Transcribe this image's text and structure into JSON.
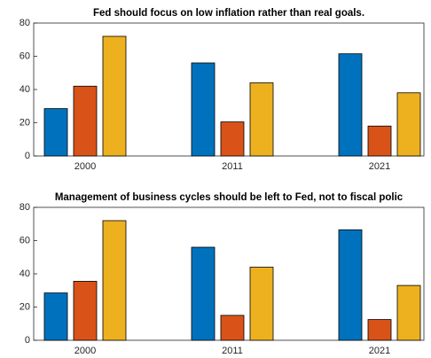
{
  "chart_data": [
    {
      "type": "bar",
      "title": "Fed should focus on low inflation rather than real goals.",
      "categories": [
        "2000",
        "2011",
        "2021"
      ],
      "series": [
        {
          "color": "#0072BD",
          "values": [
            28.5,
            56,
            61.5
          ]
        },
        {
          "color": "#D95319",
          "values": [
            42,
            20.5,
            18
          ]
        },
        {
          "color": "#EDB120",
          "values": [
            72,
            44,
            38
          ]
        }
      ],
      "ylim": [
        0,
        80
      ],
      "yticks": [
        0,
        20,
        40,
        60,
        80
      ]
    },
    {
      "type": "bar",
      "title": "Management of business cycles should be left to Fed, not to fiscal polic",
      "categories": [
        "2000",
        "2011",
        "2021"
      ],
      "series": [
        {
          "color": "#0072BD",
          "values": [
            28.5,
            56,
            66.5
          ]
        },
        {
          "color": "#D95319",
          "values": [
            35.5,
            15,
            12.5
          ]
        },
        {
          "color": "#EDB120",
          "values": [
            72,
            44,
            33
          ]
        }
      ],
      "ylim": [
        0,
        80
      ],
      "yticks": [
        0,
        20,
        40,
        60,
        80
      ]
    }
  ]
}
